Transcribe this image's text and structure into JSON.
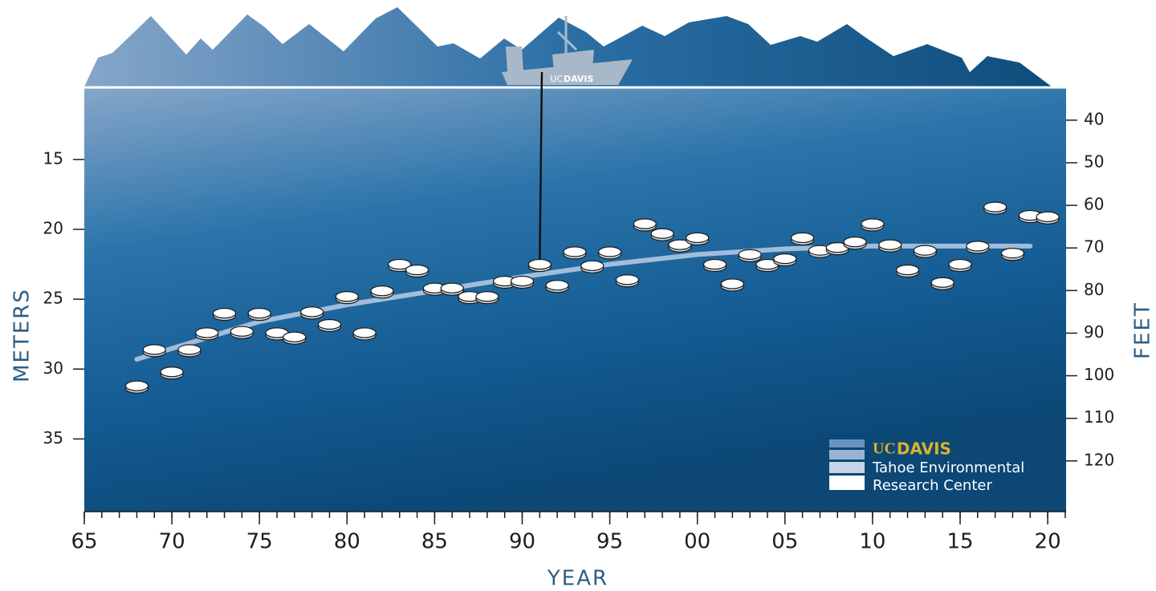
{
  "chart_data": {
    "type": "scatter",
    "x_label": "YEAR",
    "y_label": "METERS",
    "y2_label": "FEET",
    "xlim": [
      1965,
      2021.05
    ],
    "xticks": [
      {
        "value": 1965,
        "label": "65"
      },
      {
        "value": 1970,
        "label": "70"
      },
      {
        "value": 1975,
        "label": "75"
      },
      {
        "value": 1980,
        "label": "80"
      },
      {
        "value": 1985,
        "label": "85"
      },
      {
        "value": 1990,
        "label": "90"
      },
      {
        "value": 1995,
        "label": "95"
      },
      {
        "value": 2000,
        "label": "00"
      },
      {
        "value": 2005,
        "label": "05"
      },
      {
        "value": 2010,
        "label": "10"
      },
      {
        "value": 2015,
        "label": "15"
      },
      {
        "value": 2020,
        "label": "20"
      }
    ],
    "x_minor_step": 1,
    "ylim": [
      40.2,
      9.9
    ],
    "yticks": [
      15,
      20,
      25,
      30,
      35
    ],
    "y2lim": [
      131.9,
      32.5
    ],
    "y2ticks": [
      40,
      50,
      60,
      70,
      80,
      90,
      100,
      110,
      120
    ],
    "x": [
      1968,
      1969,
      1970,
      1971,
      1972,
      1973,
      1974,
      1975,
      1976,
      1977,
      1978,
      1979,
      1980,
      1981,
      1982,
      1983,
      1984,
      1985,
      1986,
      1987,
      1988,
      1989,
      1990,
      1991,
      1992,
      1993,
      1994,
      1995,
      1996,
      1997,
      1998,
      1999,
      2000,
      2001,
      2002,
      2003,
      2004,
      2005,
      2006,
      2007,
      2008,
      2009,
      2010,
      2011,
      2012,
      2013,
      2014,
      2015,
      2016,
      2017,
      2018,
      2019,
      2020
    ],
    "values": [
      31.2,
      28.6,
      30.2,
      28.6,
      27.4,
      26.0,
      27.3,
      26.0,
      27.4,
      27.7,
      25.9,
      26.8,
      24.8,
      27.4,
      24.4,
      22.5,
      22.9,
      24.2,
      24.2,
      24.8,
      24.8,
      23.7,
      23.7,
      22.5,
      24.0,
      21.6,
      22.6,
      21.6,
      23.6,
      19.6,
      20.3,
      21.1,
      20.6,
      22.5,
      23.9,
      21.8,
      22.5,
      22.1,
      20.6,
      21.5,
      21.3,
      20.9,
      19.6,
      21.1,
      22.9,
      21.5,
      23.8,
      22.5,
      21.2,
      18.4,
      21.7,
      19.0,
      19.1
    ],
    "color": "#ffffff",
    "trend": {
      "color": "#b9cde6",
      "x": [
        1968,
        1975,
        1980,
        1985,
        1990,
        1995,
        2000,
        2005,
        2010,
        2019
      ],
      "values": [
        29.3,
        26.6,
        25.4,
        24.4,
        23.4,
        22.5,
        21.8,
        21.4,
        21.2,
        21.2
      ]
    },
    "logo": {
      "uc": "UC",
      "davis": "DAVIS",
      "line1": "Tahoe Environmental",
      "line2": "Research Center"
    },
    "boat_label": {
      "uc": "UC",
      "davis": "DAVIS"
    }
  }
}
